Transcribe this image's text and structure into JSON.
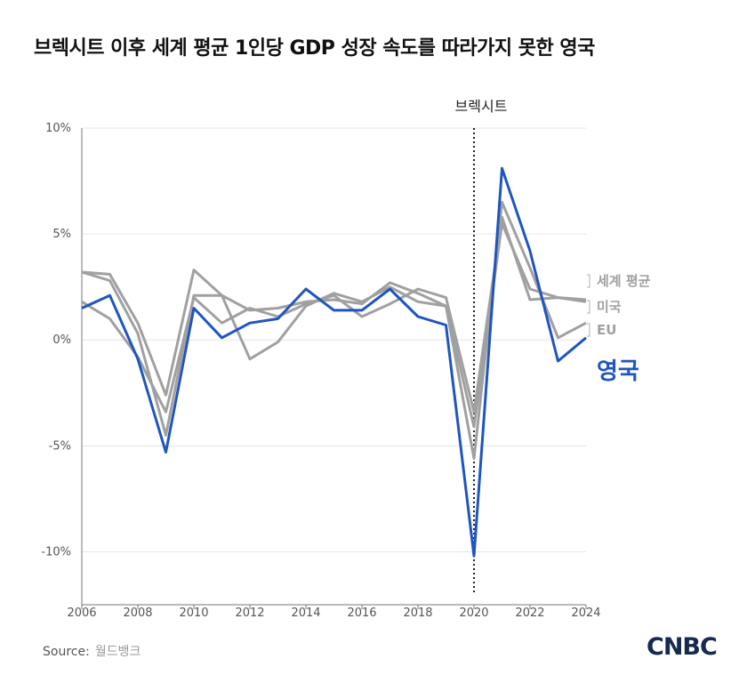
{
  "title": "브렉시트 이후 세계 평균 1인당 GDP 성장 속도를 따라가지 못한 영국",
  "source": {
    "label": "Source:",
    "value": "월드뱅크"
  },
  "logo": "CNBC",
  "colors": {
    "grey": "#a0a0a0",
    "blue": "#1f55c0",
    "axis": "#777777",
    "grid": "#e6e6e6"
  },
  "chart_data": {
    "type": "line",
    "x": [
      2006,
      2007,
      2008,
      2009,
      2010,
      2011,
      2012,
      2013,
      2014,
      2015,
      2016,
      2017,
      2018,
      2019,
      2020,
      2021,
      2022,
      2023,
      2024
    ],
    "xticks": [
      "2006",
      "2008",
      "2010",
      "2012",
      "2014",
      "2016",
      "2018",
      "2020",
      "2022",
      "2024"
    ],
    "ylim": [
      -12.5,
      10
    ],
    "yticks": [
      {
        "value": 10,
        "label": "10%"
      },
      {
        "value": 5,
        "label": "5%"
      },
      {
        "value": 0,
        "label": "0%"
      },
      {
        "value": -5,
        "label": "-5%"
      },
      {
        "value": -10,
        "label": "-10%"
      }
    ],
    "annotation": {
      "x": 2020,
      "label": "브렉시트"
    },
    "series": [
      {
        "name": "세계 평균",
        "color": "#a0a0a0",
        "highlight": false,
        "values": [
          3.2,
          3.1,
          0.8,
          -2.6,
          3.3,
          2.1,
          1.4,
          1.5,
          1.8,
          1.9,
          1.7,
          2.7,
          2.2,
          1.6,
          -4.1,
          5.5,
          2.4,
          2.0,
          1.9
        ]
      },
      {
        "name": "미국",
        "color": "#a0a0a0",
        "highlight": false,
        "values": [
          1.8,
          1.0,
          -0.8,
          -3.4,
          2.0,
          0.8,
          1.5,
          1.1,
          1.7,
          2.1,
          1.1,
          1.7,
          2.4,
          2.0,
          -3.4,
          5.8,
          1.9,
          2.0,
          1.8
        ]
      },
      {
        "name": "EU",
        "color": "#a0a0a0",
        "highlight": false,
        "values": [
          3.2,
          2.8,
          0.3,
          -4.5,
          2.1,
          2.1,
          -0.9,
          -0.1,
          1.6,
          2.2,
          1.8,
          2.5,
          1.8,
          1.6,
          -5.6,
          6.5,
          3.4,
          0.1,
          0.8
        ]
      },
      {
        "name": "영국",
        "color": "#1f55c0",
        "highlight": true,
        "values": [
          1.5,
          2.1,
          -0.9,
          -5.3,
          1.5,
          0.1,
          0.8,
          1.0,
          2.4,
          1.4,
          1.4,
          2.4,
          1.1,
          0.7,
          -10.2,
          8.1,
          4.2,
          -1.0,
          0.1
        ]
      }
    ]
  }
}
